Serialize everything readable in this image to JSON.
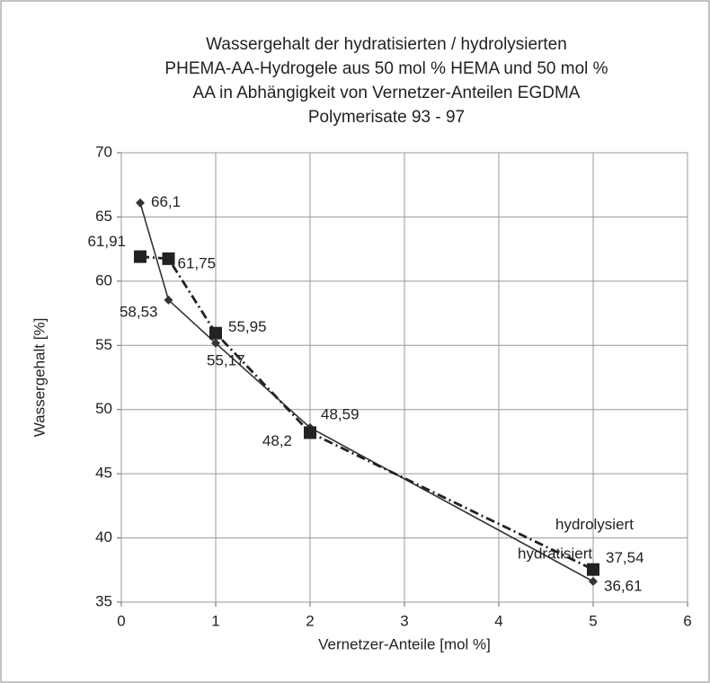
{
  "chart_data": {
    "type": "line",
    "title": [
      "Wassergehalt der hydratisierten / hydrolysierten",
      "PHEMA-AA-Hydrogele aus 50 mol % HEMA und 50 mol %",
      "AA in Abhängigkeit von Vernetzer-Anteilen EGDMA",
      "Polymerisate 93 - 97"
    ],
    "x_label": "Vernetzer-Anteile [mol %]",
    "y_label": "Wassergehalt [%]",
    "x": [
      0.2,
      0.5,
      1,
      2,
      5
    ],
    "series": [
      {
        "name": "hydratisiert",
        "color": "#333333",
        "marker": "diamond",
        "values": [
          66.1,
          58.53,
          55.17,
          48.59,
          36.61
        ],
        "value_labels": [
          "66,1",
          "58,53",
          "55,17",
          "48,59",
          "36,61"
        ]
      },
      {
        "name": "hydrolysiert",
        "color": "#222222",
        "marker": "square",
        "values": [
          61.91,
          61.75,
          55.95,
          48.2,
          37.54
        ],
        "value_labels": [
          "61,91",
          "61,75",
          "55,95",
          "48,2",
          "37,54"
        ]
      }
    ],
    "xlim": [
      0,
      6
    ],
    "xticks": [
      0,
      1,
      2,
      3,
      4,
      5,
      6
    ],
    "ylim": [
      35,
      70
    ],
    "yticks": [
      35,
      40,
      45,
      50,
      55,
      60,
      65,
      70
    ],
    "grid": true
  }
}
